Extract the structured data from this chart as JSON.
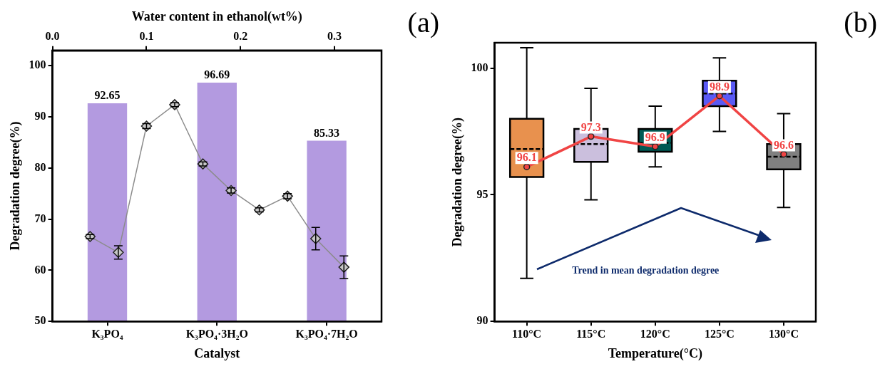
{
  "chart_data": [
    {
      "type": "bar",
      "xlabel": "Catalyst",
      "ylabel": "Degradation degree(%)",
      "x2label": "Water content in ethanol(wt%)",
      "categories": [
        "K₃PO₄",
        "K₃PO₄·3H₂O",
        "K₃PO₄·7H₂O"
      ],
      "ylim": [
        50,
        103
      ],
      "yticks": [
        50,
        60,
        70,
        80,
        90,
        100
      ],
      "x2lim": [
        0,
        0.35
      ],
      "x2ticks": [
        {
          "value": 0,
          "label": "0.0"
        },
        0.1,
        0.2,
        0.3
      ],
      "series": [
        {
          "color": "#b39ae0",
          "values": [
            92.65,
            96.69,
            85.33
          ],
          "value_labels": [
            "92.65",
            "96.69",
            "85.33"
          ]
        },
        {
          "type": "line",
          "axis": "x2",
          "color": "#8c8c8c",
          "marker": "diamond",
          "x": [
            0.04,
            0.07,
            0.1,
            0.13,
            0.16,
            0.19,
            0.22,
            0.25,
            0.28,
            0.31
          ],
          "values": [
            66.6,
            63.5,
            88.2,
            92.4,
            80.8,
            75.6,
            71.8,
            74.5,
            66.2,
            60.6
          ],
          "errors": [
            0.4,
            1.3,
            0.5,
            0.4,
            0.4,
            0.5,
            0.4,
            0.5,
            2.2,
            2.2
          ]
        }
      ],
      "grid": false,
      "annotations": [
        "(a)"
      ]
    },
    {
      "type": "box",
      "xlabel": "Temperature(°C)",
      "ylabel": "Degradation degree(%)",
      "categories": [
        "110°C",
        "115°C",
        "120°C",
        "125°C",
        "130°C"
      ],
      "ylim": [
        90,
        101
      ],
      "yticks": [
        90,
        95,
        100
      ],
      "series": [
        {
          "colors": [
            "#e8914e",
            "#cbbfdd",
            "#005a55",
            "#5a5af5",
            "#808080"
          ],
          "boxes": [
            {
              "low": 91.7,
              "q1": 95.7,
              "median": 96.8,
              "q3": 98.0,
              "high": 100.8
            },
            {
              "low": 94.8,
              "q1": 96.3,
              "median": 97.0,
              "q3": 97.6,
              "high": 99.2
            },
            {
              "low": 96.1,
              "q1": 96.7,
              "median": 97.05,
              "q3": 97.6,
              "high": 98.5
            },
            {
              "low": 97.5,
              "q1": 98.5,
              "median": 99.0,
              "q3": 99.5,
              "high": 100.4
            },
            {
              "low": 94.5,
              "q1": 96.0,
              "median": 96.5,
              "q3": 97.0,
              "high": 98.2
            }
          ]
        },
        {
          "type": "line",
          "color": "#f04444",
          "marker": "circle",
          "values": [
            96.1,
            97.3,
            96.9,
            98.9,
            96.6
          ],
          "value_labels": [
            "96.1",
            "97.3",
            "96.9",
            "98.9",
            "96.6"
          ]
        }
      ],
      "grid": false,
      "annotations": [
        "(b)",
        "Trend in mean degradation degree"
      ]
    }
  ]
}
